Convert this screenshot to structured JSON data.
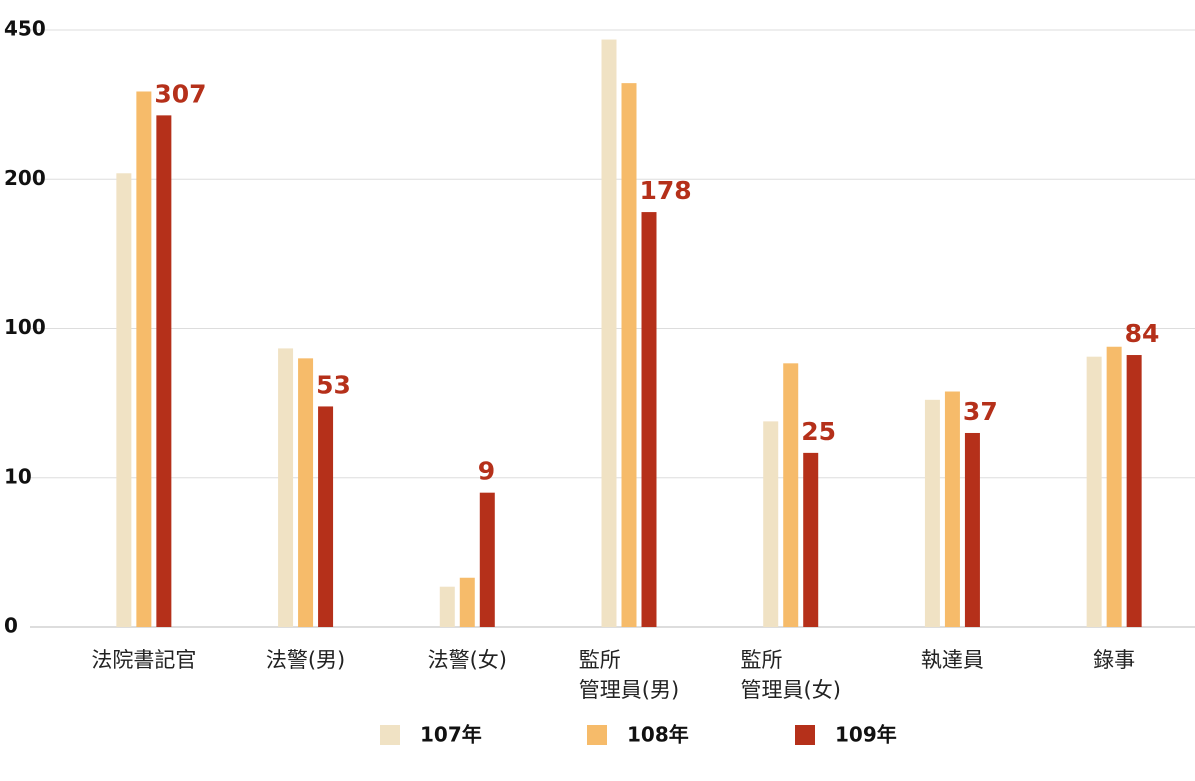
{
  "chart_data": {
    "type": "bar",
    "categories": [
      "法院書記官",
      "法警(男)",
      "法警(女)",
      "監所\n管理員(男)",
      "監所\n管理員(女)",
      "執達員",
      "錄事"
    ],
    "series": [
      {
        "name": "107年",
        "color": "#f0e2c4",
        "values": [
          210,
          88,
          2.7,
          434,
          44,
          57,
          83
        ],
        "show_values": false
      },
      {
        "name": "108年",
        "color": "#f6bb6a",
        "values": [
          347,
          82,
          3.3,
          361,
          79,
          62,
          89
        ],
        "show_values": false
      },
      {
        "name": "109年",
        "color": "#b5301a",
        "values": [
          307,
          53,
          9,
          178,
          25,
          37,
          84
        ],
        "show_values": true
      }
    ],
    "ylim": [
      0,
      450
    ],
    "yticks": [
      0,
      10,
      100,
      200,
      450
    ],
    "yscale": "piecewise",
    "grid": true,
    "legend": "bottom"
  }
}
